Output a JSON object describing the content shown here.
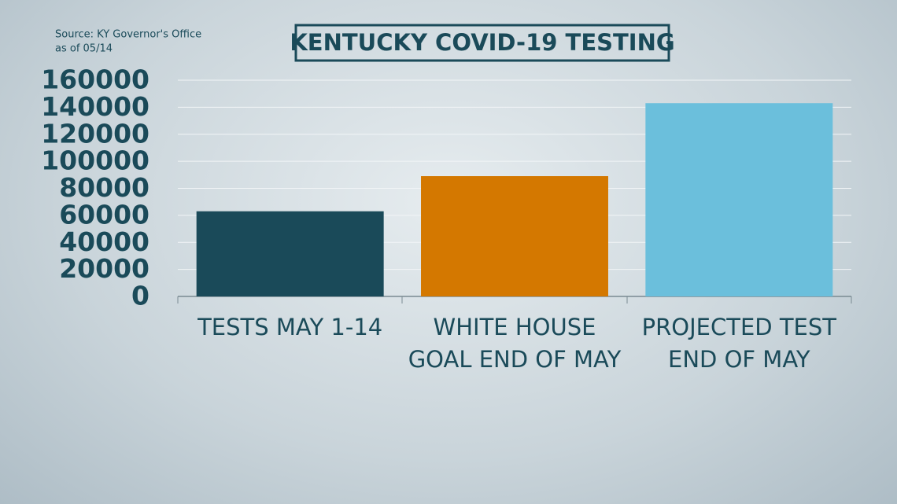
{
  "chart_data": {
    "type": "bar",
    "title": "KENTUCKY COVID-19 TESTING",
    "source": "Source: KY Governor's Office",
    "subtitle": "as of 05/14",
    "categories": [
      "TESTS MAY 1-14",
      "WHITE HOUSE GOAL END OF MAY",
      "PROJECTED TEST END OF MAY"
    ],
    "values": [
      63000,
      89000,
      143000
    ],
    "colors": [
      "#1a4a59",
      "#d47800",
      "#6bbfdc"
    ],
    "ylim": [
      0,
      160000
    ],
    "yticks": [
      0,
      20000,
      40000,
      60000,
      80000,
      100000,
      120000,
      140000,
      160000
    ],
    "grid": true
  }
}
